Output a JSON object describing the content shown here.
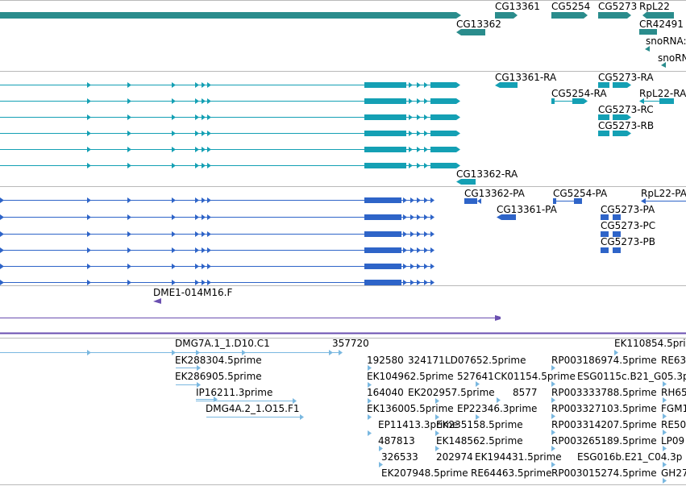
{
  "colors": {
    "gene": "#2a8c8c",
    "transcript": "#14a0b4",
    "protein": "#2e64c8",
    "clone": "#6a4fb0",
    "est": "#7ab8e0",
    "separator": "#b9b9b9"
  },
  "tracks": {
    "genes": {
      "labels": [
        "CG13361",
        "CG5254",
        "CG5273",
        "RpL22",
        "CG13362",
        "CR42491",
        "snoRNA:",
        "snoRN"
      ]
    },
    "transcripts": {
      "labels": [
        "CG13361-RA",
        "CG5273-RA",
        "CG5254-RA",
        "RpL22-RA",
        "CG5273-RC",
        "CG5273-RB",
        "CG13362-RA"
      ]
    },
    "proteins": {
      "labels": [
        "CG13362-PA",
        "CG5254-PA",
        "RpL22-PA",
        "CG13361-PA",
        "CG5273-PA",
        "CG5273-PC",
        "CG5273-PB"
      ]
    },
    "clones": {
      "labels": [
        "DME1-014M16.F"
      ]
    },
    "ests": {
      "labels": [
        "DMG7A.1_1.D10.C1",
        "357720",
        "EK110854.5pri",
        "EK288304.5prime",
        "192580",
        "324171",
        "LD07652.5prime",
        "RP003186974.5prime",
        "RE63",
        "EK286905.5prime",
        "EK104962.5prime",
        "527641",
        "CK01154.5prime",
        "ESG0115c.B21_G05.3p",
        "IP16211.3prime",
        "164040",
        "EK202957.5prime",
        "8577",
        "RP003333788.5prime",
        "RH65",
        "DMG4A.2_1.O15.F1",
        "EK136005.5prime",
        "EP22346.3prime",
        "RP003327103.5prime",
        "FGM1",
        "EP11413.3prime",
        "EK235158.5prime",
        "RP003314207.5prime",
        "RE50",
        "487813",
        "EK148562.5prime",
        "RP003265189.5prime",
        "LP09",
        "326533",
        "202974",
        "EK194431.5prime",
        "ESG016b.E21_C04.3p",
        "EK207948.5prime",
        "RE64463.5prime",
        "RP003015274.5prime",
        "GH27"
      ]
    }
  }
}
